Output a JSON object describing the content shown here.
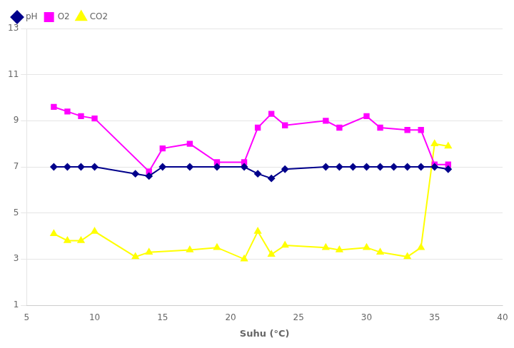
{
  "chart_data": {
    "type": "line",
    "x_label": "Suhu (°C)",
    "xlim": [
      5,
      40
    ],
    "ylim": [
      1,
      13
    ],
    "xticks": [
      5,
      10,
      15,
      20,
      25,
      30,
      35,
      40
    ],
    "yticks": [
      1,
      3,
      5,
      7,
      9,
      11,
      13
    ],
    "grid": "y",
    "legend": "upper left",
    "series": [
      {
        "name": "pH",
        "color": "#00008b",
        "marker": "diamond",
        "x": [
          7,
          8,
          9,
          10,
          13,
          14,
          15,
          17,
          19,
          21,
          22,
          23,
          24,
          27,
          28,
          29,
          30,
          31,
          32,
          33,
          34,
          35,
          36
        ],
        "values": [
          7.0,
          7.0,
          7.0,
          7.0,
          6.7,
          6.6,
          7.0,
          7.0,
          7.0,
          7.0,
          6.7,
          6.5,
          6.9,
          7.0,
          7.0,
          7.0,
          7.0,
          7.0,
          7.0,
          7.0,
          7.0,
          7.0,
          6.9
        ]
      },
      {
        "name": "O2",
        "color": "#ff00ff",
        "marker": "square",
        "x": [
          7,
          8,
          9,
          10,
          14,
          15,
          17,
          19,
          21,
          22,
          23,
          24,
          27,
          28,
          30,
          31,
          33,
          34,
          35,
          36
        ],
        "values": [
          9.6,
          9.4,
          9.2,
          9.1,
          6.8,
          7.8,
          8.0,
          7.2,
          7.2,
          8.7,
          9.3,
          8.8,
          9.0,
          8.7,
          9.2,
          8.7,
          8.6,
          8.6,
          7.1,
          7.1
        ]
      },
      {
        "name": "CO2",
        "color": "#ffff00",
        "marker": "triangle",
        "x": [
          7,
          8,
          9,
          10,
          13,
          14,
          17,
          19,
          21,
          22,
          23,
          24,
          27,
          28,
          30,
          31,
          33,
          34,
          35,
          36
        ],
        "values": [
          4.1,
          3.8,
          3.8,
          4.2,
          3.1,
          3.3,
          3.4,
          3.5,
          3.0,
          4.2,
          3.2,
          3.6,
          3.5,
          3.4,
          3.5,
          3.3,
          3.1,
          3.5,
          8.0,
          7.9
        ]
      }
    ]
  }
}
